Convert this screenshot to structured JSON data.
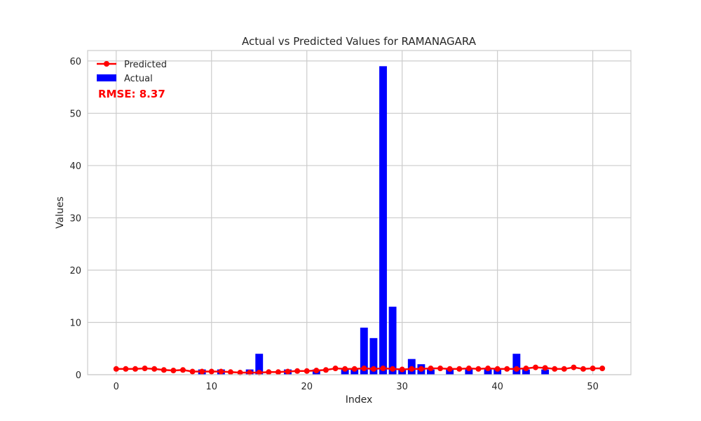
{
  "chart_data": {
    "type": "bar",
    "title": "Actual vs Predicted Values for RAMANAGARA",
    "xlabel": "Index",
    "ylabel": "Values",
    "xlim": [
      -3,
      54
    ],
    "ylim": [
      0,
      62
    ],
    "xticks": [
      0,
      10,
      20,
      30,
      40,
      50
    ],
    "yticks": [
      0,
      10,
      20,
      30,
      40,
      50,
      60
    ],
    "grid": true,
    "legend_position": "top-left",
    "annotation": "RMSE: 8.37",
    "colors": {
      "actual": "#0000ff",
      "predicted": "#ff0000",
      "annotation": "#ff0000",
      "grid": "#cccccc",
      "axes": "#cccccc"
    },
    "series": [
      {
        "name": "Actual",
        "kind": "bar",
        "x": [
          0,
          1,
          2,
          3,
          4,
          5,
          6,
          7,
          8,
          9,
          10,
          11,
          12,
          13,
          14,
          15,
          16,
          17,
          18,
          19,
          20,
          21,
          22,
          23,
          24,
          25,
          26,
          27,
          28,
          29,
          30,
          31,
          32,
          33,
          34,
          35,
          36,
          37,
          38,
          39,
          40,
          41,
          42,
          43,
          44,
          45,
          46,
          47,
          48,
          49,
          50,
          51
        ],
        "values": [
          0,
          0,
          0,
          0,
          0,
          0,
          0,
          0,
          0,
          1,
          0,
          1,
          0,
          0,
          1,
          4,
          0,
          0,
          1,
          0,
          0,
          1,
          0,
          0,
          1,
          1,
          9,
          7,
          59,
          13,
          1,
          3,
          2,
          1,
          0,
          1,
          0,
          1,
          0,
          1,
          1,
          0,
          4,
          1,
          0,
          1,
          0,
          0,
          0,
          0,
          0,
          0
        ]
      },
      {
        "name": "Predicted",
        "kind": "line",
        "x": [
          0,
          1,
          2,
          3,
          4,
          5,
          6,
          7,
          8,
          9,
          10,
          11,
          12,
          13,
          14,
          15,
          16,
          17,
          18,
          19,
          20,
          21,
          22,
          23,
          24,
          25,
          26,
          27,
          28,
          29,
          30,
          31,
          32,
          33,
          34,
          35,
          36,
          37,
          38,
          39,
          40,
          41,
          42,
          43,
          44,
          45,
          46,
          47,
          48,
          49,
          50,
          51
        ],
        "values": [
          1.1,
          1.1,
          1.1,
          1.2,
          1.1,
          0.9,
          0.8,
          0.9,
          0.6,
          0.6,
          0.6,
          0.6,
          0.5,
          0.4,
          0.4,
          0.4,
          0.5,
          0.5,
          0.6,
          0.7,
          0.7,
          0.8,
          0.9,
          1.2,
          1.1,
          1.1,
          1.2,
          1.1,
          1.2,
          1.1,
          1.0,
          1.1,
          1.1,
          1.2,
          1.2,
          1.1,
          1.1,
          1.2,
          1.1,
          1.2,
          1.1,
          1.1,
          1.1,
          1.2,
          1.4,
          1.3,
          1.1,
          1.1,
          1.4,
          1.1,
          1.2,
          1.2
        ]
      }
    ]
  }
}
